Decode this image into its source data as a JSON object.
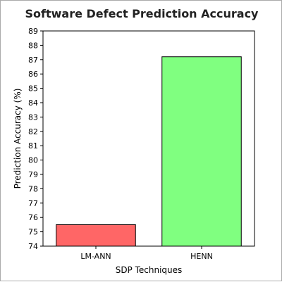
{
  "chart_data": {
    "type": "bar",
    "title": "Software Defect Prediction Accuracy",
    "xlabel": "SDP Techniques",
    "ylabel": "Prediction Accuracy (%)",
    "categories": [
      "LM-ANN",
      "HENN"
    ],
    "values": [
      75.5,
      87.2
    ],
    "colors": [
      "#ff6666",
      "#80ff80"
    ],
    "ylim": [
      74,
      89
    ],
    "yticks": [
      74,
      75,
      76,
      77,
      78,
      79,
      80,
      81,
      82,
      83,
      84,
      85,
      86,
      87,
      88,
      89
    ],
    "grid": false,
    "legend": "none"
  }
}
